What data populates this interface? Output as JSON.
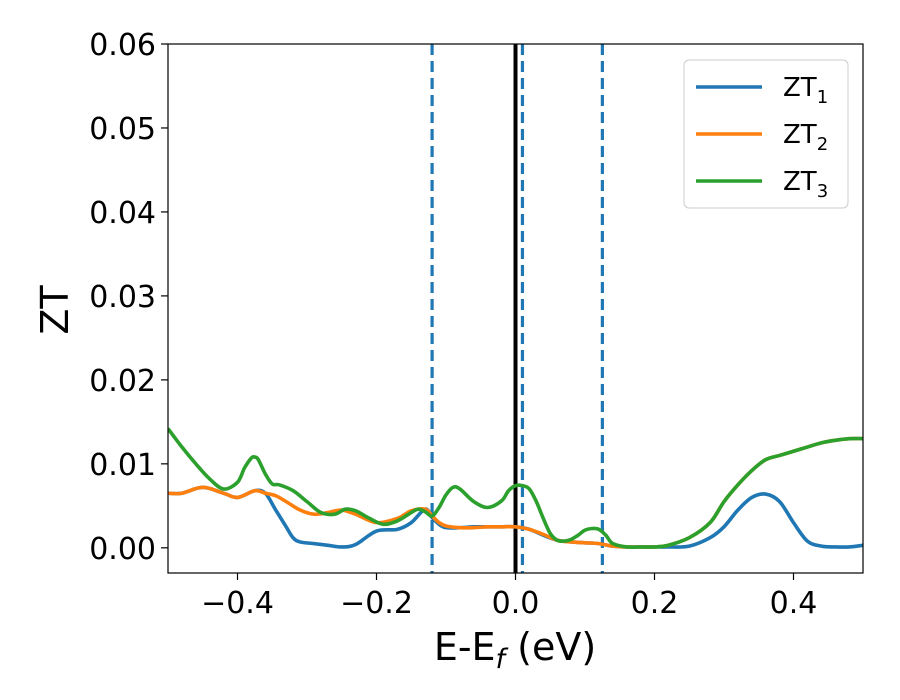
{
  "chart_data": {
    "type": "line",
    "xlabel": "E-E",
    "xlabel_sub": "f",
    "xlabel_unit": " (eV)",
    "ylabel": "ZT",
    "xlim": [
      -0.5,
      0.5
    ],
    "ylim": [
      -0.003,
      0.06
    ],
    "xticks": [
      -0.4,
      -0.2,
      0.0,
      0.2,
      0.4
    ],
    "xtick_labels": [
      "−0.4",
      "−0.2",
      "0.0",
      "0.2",
      "0.4"
    ],
    "yticks": [
      0.0,
      0.01,
      0.02,
      0.03,
      0.04,
      0.05,
      0.06
    ],
    "ytick_labels": [
      "0.00",
      "0.01",
      "0.02",
      "0.03",
      "0.04",
      "0.05",
      "0.06"
    ],
    "grid": false,
    "legend_position": "top-right",
    "vertical_lines": [
      {
        "x": -0.12,
        "style": "dashed",
        "color": "#1f77b4"
      },
      {
        "x": 0.0,
        "style": "solid",
        "color": "#000000"
      },
      {
        "x": 0.01,
        "style": "dashed",
        "color": "#1f77b4"
      },
      {
        "x": 0.125,
        "style": "dashed",
        "color": "#1f77b4"
      }
    ],
    "series": [
      {
        "name": "ZT",
        "name_sub": "1",
        "color": "#1f77b4",
        "x": [
          -0.5,
          -0.48,
          -0.45,
          -0.42,
          -0.4,
          -0.375,
          -0.36,
          -0.345,
          -0.33,
          -0.32,
          -0.31,
          -0.29,
          -0.27,
          -0.25,
          -0.23,
          -0.2,
          -0.17,
          -0.15,
          -0.13,
          -0.12,
          -0.11,
          -0.1,
          -0.08,
          -0.06,
          -0.04,
          -0.02,
          0.0,
          0.02,
          0.04,
          0.06,
          0.08,
          0.1,
          0.12,
          0.14,
          0.16,
          0.18,
          0.2,
          0.22,
          0.25,
          0.28,
          0.3,
          0.32,
          0.34,
          0.36,
          0.38,
          0.4,
          0.42,
          0.44,
          0.46,
          0.48,
          0.5
        ],
        "y": [
          0.0065,
          0.0065,
          0.0072,
          0.0065,
          0.006,
          0.0068,
          0.0065,
          0.0045,
          0.0025,
          0.0012,
          0.0007,
          0.0005,
          0.0003,
          0.0001,
          0.0004,
          0.002,
          0.0022,
          0.003,
          0.0046,
          0.0036,
          0.0028,
          0.0024,
          0.0024,
          0.0025,
          0.0025,
          0.0025,
          0.0025,
          0.0022,
          0.0015,
          0.0009,
          0.0007,
          0.0006,
          0.0005,
          0.0002,
          0.0001,
          0.0001,
          0.0001,
          0.0001,
          0.0002,
          0.0012,
          0.0025,
          0.0045,
          0.006,
          0.0064,
          0.0055,
          0.003,
          0.0008,
          0.0002,
          0.0001,
          0.0001,
          0.0003
        ]
      },
      {
        "name": "ZT",
        "name_sub": "2",
        "color": "#ff7f0e",
        "x": [
          -0.5,
          -0.48,
          -0.45,
          -0.42,
          -0.4,
          -0.375,
          -0.36,
          -0.345,
          -0.33,
          -0.31,
          -0.29,
          -0.27,
          -0.25,
          -0.23,
          -0.2,
          -0.17,
          -0.15,
          -0.13,
          -0.12,
          -0.11,
          -0.1,
          -0.08,
          -0.06,
          -0.04,
          -0.02,
          0.0,
          0.02,
          0.04,
          0.06,
          0.08,
          0.1,
          0.12,
          0.14,
          0.16,
          0.18,
          0.2,
          0.22,
          0.25,
          0.28,
          0.3,
          0.32,
          0.34,
          0.36,
          0.38,
          0.4,
          0.42,
          0.44,
          0.46,
          0.48,
          0.5
        ],
        "y": [
          0.0065,
          0.0065,
          0.0072,
          0.0065,
          0.006,
          0.0068,
          0.0065,
          0.0062,
          0.0055,
          0.0045,
          0.004,
          0.0042,
          0.0045,
          0.004,
          0.003,
          0.0035,
          0.0044,
          0.0046,
          0.0038,
          0.003,
          0.0026,
          0.0024,
          0.0024,
          0.0025,
          0.0025,
          0.0025,
          0.0022,
          0.0016,
          0.0009,
          0.0007,
          0.0006,
          0.0005,
          0.0002,
          0.0001,
          0.0001,
          0.0001,
          0.0003,
          0.0012,
          0.003,
          0.0055,
          0.0075,
          0.0092,
          0.0105,
          0.011,
          0.0115,
          0.012,
          0.0125,
          0.0128,
          0.013,
          0.013
        ]
      },
      {
        "name": "ZT",
        "name_sub": "3",
        "color": "#2ca02c",
        "x": [
          -0.5,
          -0.48,
          -0.46,
          -0.44,
          -0.42,
          -0.4,
          -0.39,
          -0.38,
          -0.375,
          -0.37,
          -0.36,
          -0.35,
          -0.34,
          -0.32,
          -0.3,
          -0.28,
          -0.26,
          -0.245,
          -0.23,
          -0.21,
          -0.19,
          -0.17,
          -0.15,
          -0.14,
          -0.13,
          -0.12,
          -0.11,
          -0.1,
          -0.09,
          -0.08,
          -0.06,
          -0.04,
          -0.02,
          -0.01,
          0.0,
          0.01,
          0.02,
          0.03,
          0.04,
          0.05,
          0.06,
          0.07,
          0.08,
          0.09,
          0.1,
          0.11,
          0.12,
          0.13,
          0.14,
          0.16,
          0.18,
          0.2,
          0.22,
          0.25,
          0.28,
          0.3,
          0.32,
          0.34,
          0.36,
          0.38,
          0.4,
          0.42,
          0.44,
          0.46,
          0.48,
          0.5
        ],
        "y": [
          0.0142,
          0.012,
          0.01,
          0.0082,
          0.007,
          0.0078,
          0.0095,
          0.0107,
          0.0108,
          0.0105,
          0.0088,
          0.0076,
          0.0075,
          0.0068,
          0.0055,
          0.0042,
          0.004,
          0.0046,
          0.0044,
          0.0035,
          0.0028,
          0.0032,
          0.0042,
          0.0046,
          0.0043,
          0.0038,
          0.0048,
          0.0063,
          0.0072,
          0.007,
          0.0055,
          0.0048,
          0.0056,
          0.0068,
          0.0074,
          0.0074,
          0.007,
          0.0055,
          0.0035,
          0.0017,
          0.0009,
          0.0008,
          0.001,
          0.0015,
          0.0021,
          0.0023,
          0.0022,
          0.0015,
          0.0005,
          0.0001,
          0.0001,
          0.0001,
          0.0003,
          0.0012,
          0.003,
          0.0055,
          0.0075,
          0.0092,
          0.0105,
          0.011,
          0.0115,
          0.012,
          0.0125,
          0.0128,
          0.013,
          0.013
        ]
      }
    ]
  }
}
